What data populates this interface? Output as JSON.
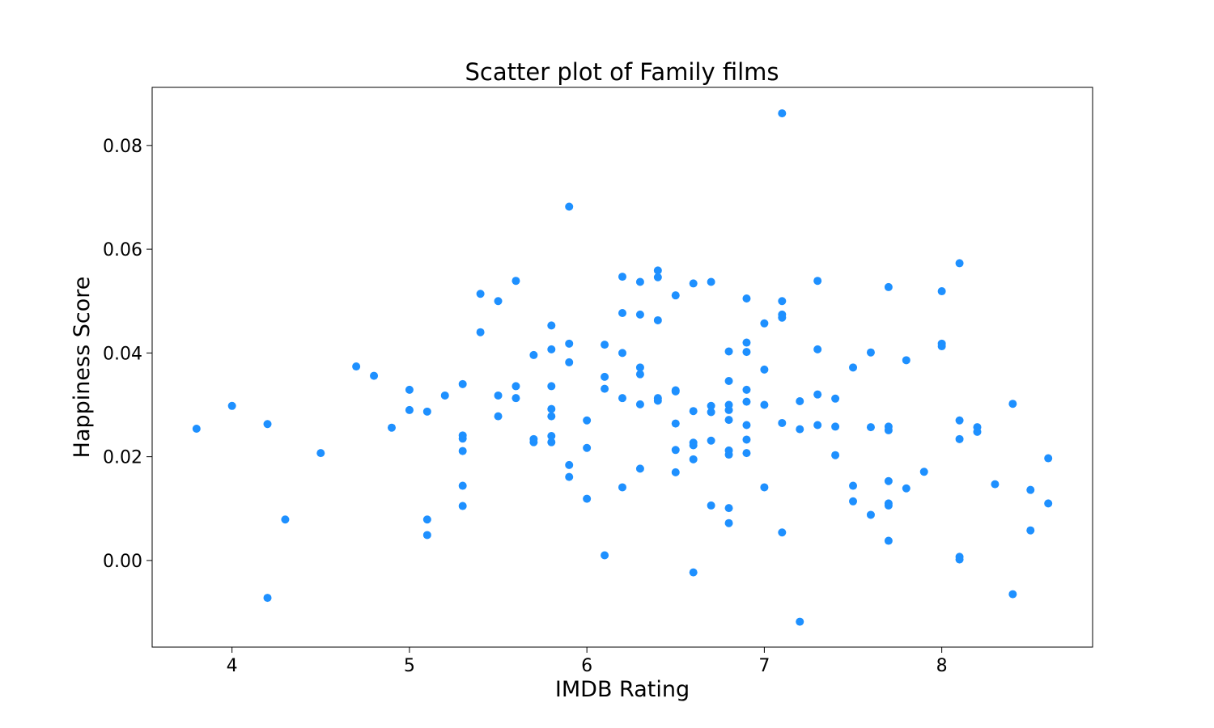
{
  "chart_data": {
    "type": "scatter",
    "title": "Scatter plot of Family films",
    "xlabel": "IMDB Rating",
    "ylabel": "Happiness Score",
    "xlim": [
      3.55,
      8.85
    ],
    "ylim": [
      -0.0167,
      0.0912
    ],
    "xticks": [
      4,
      5,
      6,
      7,
      8
    ],
    "xtick_labels": [
      "4",
      "5",
      "6",
      "7",
      "8"
    ],
    "yticks": [
      0.0,
      0.02,
      0.04,
      0.06,
      0.08
    ],
    "ytick_labels": [
      "0.00",
      "0.02",
      "0.04",
      "0.06",
      "0.08"
    ],
    "grid": false,
    "marker_color": "#1e90ff",
    "points": [
      [
        3.8,
        0.0254
      ],
      [
        4.0,
        0.0298
      ],
      [
        4.2,
        0.0263
      ],
      [
        4.2,
        -0.0072
      ],
      [
        4.3,
        0.0079
      ],
      [
        4.5,
        0.0207
      ],
      [
        4.7,
        0.0374
      ],
      [
        4.8,
        0.0356
      ],
      [
        4.9,
        0.0256
      ],
      [
        5.0,
        0.0329
      ],
      [
        5.0,
        0.029
      ],
      [
        5.1,
        0.0287
      ],
      [
        5.1,
        0.0079
      ],
      [
        5.1,
        0.0049
      ],
      [
        5.2,
        0.0318
      ],
      [
        5.3,
        0.034
      ],
      [
        5.3,
        0.0241
      ],
      [
        5.3,
        0.0235
      ],
      [
        5.3,
        0.0211
      ],
      [
        5.3,
        0.0144
      ],
      [
        5.3,
        0.0105
      ],
      [
        5.4,
        0.0514
      ],
      [
        5.4,
        0.044
      ],
      [
        5.5,
        0.05
      ],
      [
        5.5,
        0.0318
      ],
      [
        5.5,
        0.0278
      ],
      [
        5.6,
        0.0539
      ],
      [
        5.6,
        0.0336
      ],
      [
        5.6,
        0.0313
      ],
      [
        5.7,
        0.0396
      ],
      [
        5.7,
        0.0234
      ],
      [
        5.7,
        0.0228
      ],
      [
        5.8,
        0.0453
      ],
      [
        5.8,
        0.0407
      ],
      [
        5.8,
        0.0336
      ],
      [
        5.8,
        0.0292
      ],
      [
        5.8,
        0.0278
      ],
      [
        5.8,
        0.024
      ],
      [
        5.8,
        0.0228
      ],
      [
        5.9,
        0.0682
      ],
      [
        5.9,
        0.0418
      ],
      [
        5.9,
        0.0382
      ],
      [
        5.9,
        0.0184
      ],
      [
        5.9,
        0.0161
      ],
      [
        6.0,
        0.027
      ],
      [
        6.0,
        0.0217
      ],
      [
        6.0,
        0.0119
      ],
      [
        6.1,
        0.0416
      ],
      [
        6.1,
        0.0354
      ],
      [
        6.1,
        0.0331
      ],
      [
        6.1,
        0.001
      ],
      [
        6.2,
        0.0547
      ],
      [
        6.2,
        0.0477
      ],
      [
        6.2,
        0.04
      ],
      [
        6.2,
        0.0313
      ],
      [
        6.2,
        0.0141
      ],
      [
        6.3,
        0.0537
      ],
      [
        6.3,
        0.0474
      ],
      [
        6.3,
        0.0372
      ],
      [
        6.3,
        0.0359
      ],
      [
        6.3,
        0.0301
      ],
      [
        6.3,
        0.0177
      ],
      [
        6.4,
        0.0559
      ],
      [
        6.4,
        0.0546
      ],
      [
        6.4,
        0.0463
      ],
      [
        6.4,
        0.0313
      ],
      [
        6.4,
        0.0308
      ],
      [
        6.5,
        0.0511
      ],
      [
        6.5,
        0.0328
      ],
      [
        6.5,
        0.0326
      ],
      [
        6.5,
        0.0264
      ],
      [
        6.5,
        0.0213
      ],
      [
        6.5,
        0.017
      ],
      [
        6.6,
        0.0534
      ],
      [
        6.6,
        0.0288
      ],
      [
        6.6,
        0.0227
      ],
      [
        6.6,
        0.0222
      ],
      [
        6.6,
        0.0195
      ],
      [
        6.6,
        -0.0023
      ],
      [
        6.7,
        0.0537
      ],
      [
        6.7,
        0.0298
      ],
      [
        6.7,
        0.0286
      ],
      [
        6.7,
        0.0231
      ],
      [
        6.7,
        0.0106
      ],
      [
        6.8,
        0.0403
      ],
      [
        6.8,
        0.0346
      ],
      [
        6.8,
        0.03
      ],
      [
        6.8,
        0.029
      ],
      [
        6.8,
        0.0271
      ],
      [
        6.8,
        0.0212
      ],
      [
        6.8,
        0.0204
      ],
      [
        6.8,
        0.0101
      ],
      [
        6.8,
        0.0072
      ],
      [
        6.9,
        0.0505
      ],
      [
        6.9,
        0.042
      ],
      [
        6.9,
        0.0402
      ],
      [
        6.9,
        0.0329
      ],
      [
        6.9,
        0.0306
      ],
      [
        6.9,
        0.0261
      ],
      [
        6.9,
        0.0233
      ],
      [
        6.9,
        0.0207
      ],
      [
        7.0,
        0.0457
      ],
      [
        7.0,
        0.0368
      ],
      [
        7.0,
        0.03
      ],
      [
        7.0,
        0.0141
      ],
      [
        7.1,
        0.0862
      ],
      [
        7.1,
        0.05
      ],
      [
        7.1,
        0.0474
      ],
      [
        7.1,
        0.0468
      ],
      [
        7.1,
        0.0265
      ],
      [
        7.1,
        0.0054
      ],
      [
        7.2,
        0.0307
      ],
      [
        7.2,
        0.0253
      ],
      [
        7.2,
        -0.0118
      ],
      [
        7.3,
        0.0539
      ],
      [
        7.3,
        0.0407
      ],
      [
        7.3,
        0.032
      ],
      [
        7.3,
        0.0261
      ],
      [
        7.4,
        0.0312
      ],
      [
        7.4,
        0.0258
      ],
      [
        7.4,
        0.0203
      ],
      [
        7.5,
        0.0372
      ],
      [
        7.5,
        0.0144
      ],
      [
        7.5,
        0.0114
      ],
      [
        7.6,
        0.0401
      ],
      [
        7.6,
        0.0257
      ],
      [
        7.6,
        0.0088
      ],
      [
        7.7,
        0.0527
      ],
      [
        7.7,
        0.0258
      ],
      [
        7.7,
        0.0251
      ],
      [
        7.7,
        0.0153
      ],
      [
        7.7,
        0.011
      ],
      [
        7.7,
        0.0106
      ],
      [
        7.7,
        0.0038
      ],
      [
        7.8,
        0.0386
      ],
      [
        7.8,
        0.0139
      ],
      [
        7.9,
        0.0171
      ],
      [
        8.0,
        0.0519
      ],
      [
        8.0,
        0.0418
      ],
      [
        8.0,
        0.0413
      ],
      [
        8.1,
        0.0573
      ],
      [
        8.1,
        0.027
      ],
      [
        8.1,
        0.0234
      ],
      [
        8.1,
        0.0007
      ],
      [
        8.1,
        0.0002
      ],
      [
        8.2,
        0.0257
      ],
      [
        8.2,
        0.0248
      ],
      [
        8.3,
        0.0147
      ],
      [
        8.4,
        0.0302
      ],
      [
        8.4,
        -0.0065
      ],
      [
        8.5,
        0.0136
      ],
      [
        8.5,
        0.0058
      ],
      [
        8.6,
        0.0197
      ],
      [
        8.6,
        0.011
      ]
    ]
  }
}
